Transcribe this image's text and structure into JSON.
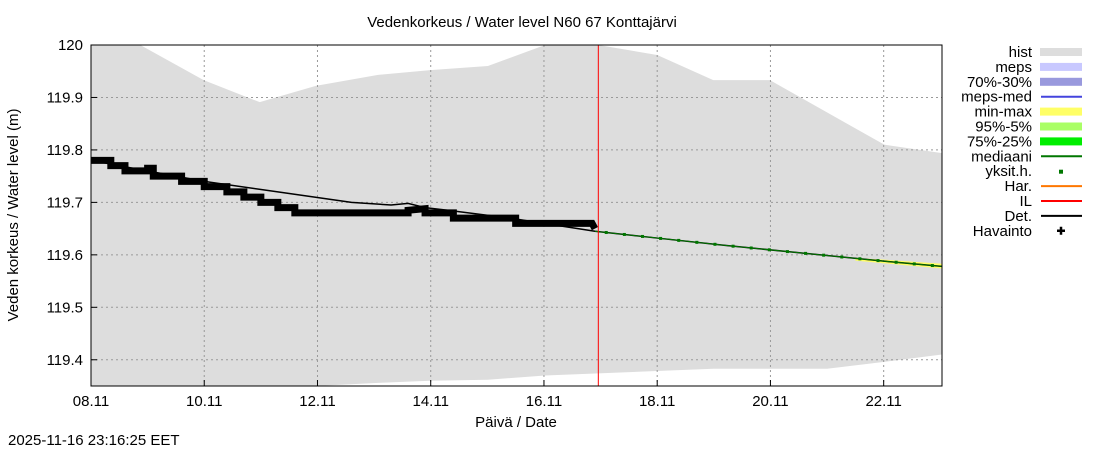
{
  "chart_data": {
    "type": "line",
    "title": "Vedenkorkeus / Water level   N60 67 Konttajärvi",
    "xlabel": "Päivä / Date",
    "ylabel": "Veden korkeus / Water level (m)",
    "x_unit": "days from 08.11",
    "xlim": [
      0,
      15.03
    ],
    "ylim": [
      119.35,
      120.0
    ],
    "yticks": [
      119.4,
      119.5,
      119.6,
      119.7,
      119.8,
      119.9,
      120
    ],
    "ytick_labels": [
      "119.4",
      "119.5",
      "119.6",
      "119.7",
      "119.8",
      "119.9",
      "120"
    ],
    "xticks": [
      0,
      2,
      4,
      6,
      8,
      10,
      12,
      14
    ],
    "xtick_labels": [
      "08.11",
      "10.11",
      "12.11",
      "14.11",
      "16.11",
      "18.11",
      "20.11",
      "22.11"
    ],
    "grid": true,
    "legend_placement": "right",
    "now_line_x": 8.96,
    "hist_upper": [
      [
        0,
        120.02
      ],
      [
        0.87,
        120.0
      ],
      [
        1.99,
        119.933
      ],
      [
        2.98,
        119.891
      ],
      [
        3.97,
        119.922
      ],
      [
        5.07,
        119.943
      ],
      [
        5.99,
        119.952
      ],
      [
        7.01,
        119.96
      ],
      [
        8.02,
        120.0
      ],
      [
        8.96,
        120.0
      ],
      [
        10.0,
        119.981
      ],
      [
        10.99,
        119.933
      ],
      [
        11.99,
        119.933
      ],
      [
        14.01,
        119.81
      ],
      [
        15.03,
        119.794
      ]
    ],
    "hist_lower": [
      [
        0,
        119.33
      ],
      [
        3.97,
        119.35
      ],
      [
        5.07,
        119.356
      ],
      [
        5.99,
        119.36
      ],
      [
        7.01,
        119.362
      ],
      [
        8.02,
        119.37
      ],
      [
        10.99,
        119.383
      ],
      [
        13.0,
        119.383
      ],
      [
        14.01,
        119.396
      ],
      [
        15.03,
        119.41
      ]
    ],
    "observations": [
      [
        0,
        119.78
      ],
      [
        0.35,
        119.78
      ],
      [
        0.35,
        119.77
      ],
      [
        0.6,
        119.77
      ],
      [
        0.6,
        119.76
      ],
      [
        1.0,
        119.76
      ],
      [
        1.0,
        119.765
      ],
      [
        1.1,
        119.765
      ],
      [
        1.1,
        119.75
      ],
      [
        1.6,
        119.75
      ],
      [
        1.6,
        119.74
      ],
      [
        2.0,
        119.74
      ],
      [
        2.0,
        119.73
      ],
      [
        2.4,
        119.73
      ],
      [
        2.4,
        119.72
      ],
      [
        2.7,
        119.72
      ],
      [
        2.7,
        119.71
      ],
      [
        3.0,
        119.71
      ],
      [
        3.0,
        119.7
      ],
      [
        3.3,
        119.7
      ],
      [
        3.3,
        119.69
      ],
      [
        3.6,
        119.69
      ],
      [
        3.6,
        119.68
      ],
      [
        5.6,
        119.68
      ],
      [
        5.6,
        119.685
      ],
      [
        5.9,
        119.688
      ],
      [
        5.9,
        119.68
      ],
      [
        6.4,
        119.68
      ],
      [
        6.4,
        119.67
      ],
      [
        7.5,
        119.67
      ],
      [
        7.5,
        119.66
      ],
      [
        8.85,
        119.66
      ],
      [
        8.9,
        119.65
      ]
    ],
    "deterministic": [
      [
        0,
        119.78
      ],
      [
        2.0,
        119.74
      ],
      [
        3.3,
        119.72
      ],
      [
        4.6,
        119.7
      ],
      [
        5.3,
        119.695
      ],
      [
        5.6,
        119.698
      ],
      [
        5.9,
        119.69
      ],
      [
        6.3,
        119.685
      ],
      [
        7.4,
        119.67
      ],
      [
        8.9,
        119.645
      ],
      [
        10.0,
        119.632
      ],
      [
        11.2,
        119.618
      ],
      [
        12.6,
        119.603
      ],
      [
        14.0,
        119.588
      ],
      [
        15.03,
        119.578
      ]
    ],
    "median": [
      [
        8.9,
        119.645
      ],
      [
        10.0,
        119.632
      ],
      [
        11.2,
        119.618
      ],
      [
        12.6,
        119.603
      ],
      [
        14.0,
        119.588
      ],
      [
        15.03,
        119.578
      ]
    ],
    "minmax_band": [
      [
        13.5,
        119.594,
        119.589
      ],
      [
        14.0,
        119.591,
        119.584
      ],
      [
        15.03,
        119.583,
        119.574
      ]
    ],
    "legend": [
      {
        "label": "hist",
        "color": "#dddddd",
        "kind": "band"
      },
      {
        "label": "meps",
        "color": "#c8c8ff",
        "kind": "band"
      },
      {
        "label": "70%-30%",
        "color": "#9999dd",
        "kind": "band"
      },
      {
        "label": "meps-med",
        "color": "#4444dd",
        "kind": "line"
      },
      {
        "label": "min-max",
        "color": "#ffff66",
        "kind": "band"
      },
      {
        "label": "95%-5%",
        "color": "#aaff66",
        "kind": "band"
      },
      {
        "label": "75%-25%",
        "color": "#00ee00",
        "kind": "band"
      },
      {
        "label": "mediaani",
        "color": "#007700",
        "kind": "line"
      },
      {
        "label": "yksit.h.",
        "color": "#007700",
        "kind": "dot"
      },
      {
        "label": "Har.",
        "color": "#ff7700",
        "kind": "line"
      },
      {
        "label": "IL",
        "color": "#ff0000",
        "kind": "line"
      },
      {
        "label": "Det.",
        "color": "#000000",
        "kind": "line"
      },
      {
        "label": "Havainto",
        "color": "#000000",
        "kind": "plus"
      }
    ]
  },
  "timestamp": "2025-11-16 23:16:25 EET"
}
